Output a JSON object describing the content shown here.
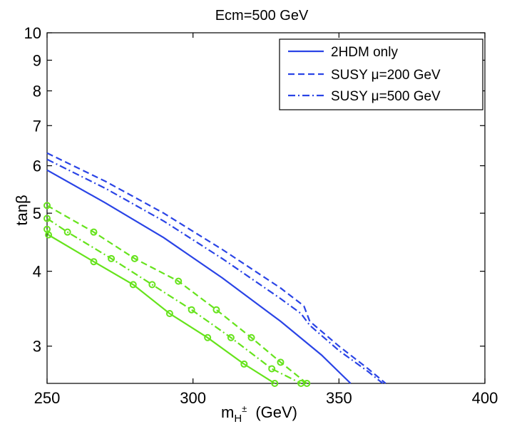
{
  "chart_data": {
    "type": "line",
    "title": "Ecm=500 GeV",
    "xlabel": {
      "main": "m",
      "sub": "H",
      "sup": "±",
      "unit": "(GeV)"
    },
    "ylabel": "tanβ",
    "xlim": [
      250,
      400
    ],
    "ylim": [
      2.6,
      10
    ],
    "yscale": "log",
    "xticks": [
      250,
      300,
      350,
      400
    ],
    "yticks": [
      3,
      4,
      5,
      6,
      7,
      8,
      9,
      10
    ],
    "grid": false,
    "legend_position": "top-right",
    "colors": {
      "blue": "#2a44e6",
      "green": "#66e31c"
    },
    "legend": [
      {
        "label": "2HDM only",
        "style": "solid"
      },
      {
        "label": "SUSY μ=200 GeV",
        "style": "dashed"
      },
      {
        "label": "SUSY μ=500 GeV",
        "style": "dashdot"
      }
    ],
    "series": [
      {
        "name": "2HDM only (blue)",
        "color": "blue",
        "style": "solid",
        "markers": false,
        "x": [
          250,
          270,
          290,
          310,
          330,
          344,
          354
        ],
        "y": [
          5.9,
          5.2,
          4.55,
          3.9,
          3.3,
          2.9,
          2.6
        ]
      },
      {
        "name": "SUSY mu=200 GeV (blue)",
        "color": "blue",
        "style": "dashed",
        "markers": false,
        "x": [
          250,
          270,
          290,
          310,
          330,
          338,
          340,
          350,
          360,
          366
        ],
        "y": [
          6.3,
          5.65,
          5.0,
          4.35,
          3.75,
          3.5,
          3.3,
          3.0,
          2.75,
          2.6
        ]
      },
      {
        "name": "SUSY mu=500 GeV (blue)",
        "color": "blue",
        "style": "dashdot",
        "markers": false,
        "x": [
          250,
          270,
          290,
          310,
          330,
          337,
          340,
          350,
          360,
          365
        ],
        "y": [
          6.15,
          5.5,
          4.85,
          4.2,
          3.6,
          3.4,
          3.25,
          2.95,
          2.72,
          2.6
        ]
      },
      {
        "name": "2HDM only (green)",
        "color": "green",
        "style": "solid",
        "markers": true,
        "x": [
          250,
          250.5,
          266,
          279.5,
          292,
          305,
          317.5,
          328
        ],
        "y": [
          4.7,
          4.6,
          4.15,
          3.8,
          3.4,
          3.1,
          2.8,
          2.6
        ]
      },
      {
        "name": "SUSY mu=200 GeV (green)",
        "color": "green",
        "style": "dashed",
        "markers": true,
        "x": [
          250,
          266,
          280,
          295,
          308,
          320,
          330,
          339
        ],
        "y": [
          5.15,
          4.65,
          4.2,
          3.85,
          3.45,
          3.1,
          2.82,
          2.6
        ]
      },
      {
        "name": "SUSY mu=500 GeV (green)",
        "color": "green",
        "style": "dashdot",
        "markers": true,
        "x": [
          250,
          257,
          272,
          286,
          299.5,
          313,
          327,
          337
        ],
        "y": [
          4.9,
          4.65,
          4.2,
          3.8,
          3.45,
          3.1,
          2.75,
          2.6
        ]
      }
    ]
  }
}
